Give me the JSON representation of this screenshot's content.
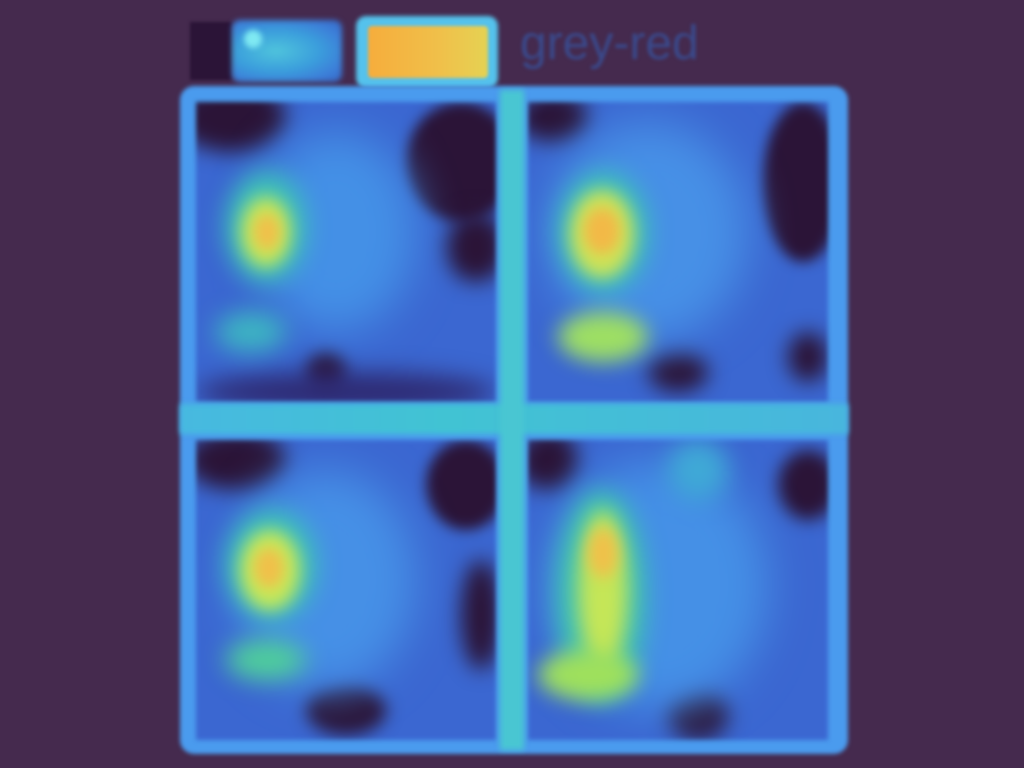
{
  "legend": {
    "label": "grey-red",
    "swatch_colors": [
      "#f6ad3c",
      "#e5d253"
    ]
  },
  "colormap": {
    "background": "#452a4e",
    "low": "#2b1437",
    "mid": "#3b67d1",
    "high": "#4fc4dc",
    "peak": "#f0c04a"
  },
  "grid": {
    "rows": 2,
    "cols": 2,
    "panels": [
      {
        "id": "top-left"
      },
      {
        "id": "top-right"
      },
      {
        "id": "bottom-left"
      },
      {
        "id": "bottom-right"
      }
    ]
  }
}
